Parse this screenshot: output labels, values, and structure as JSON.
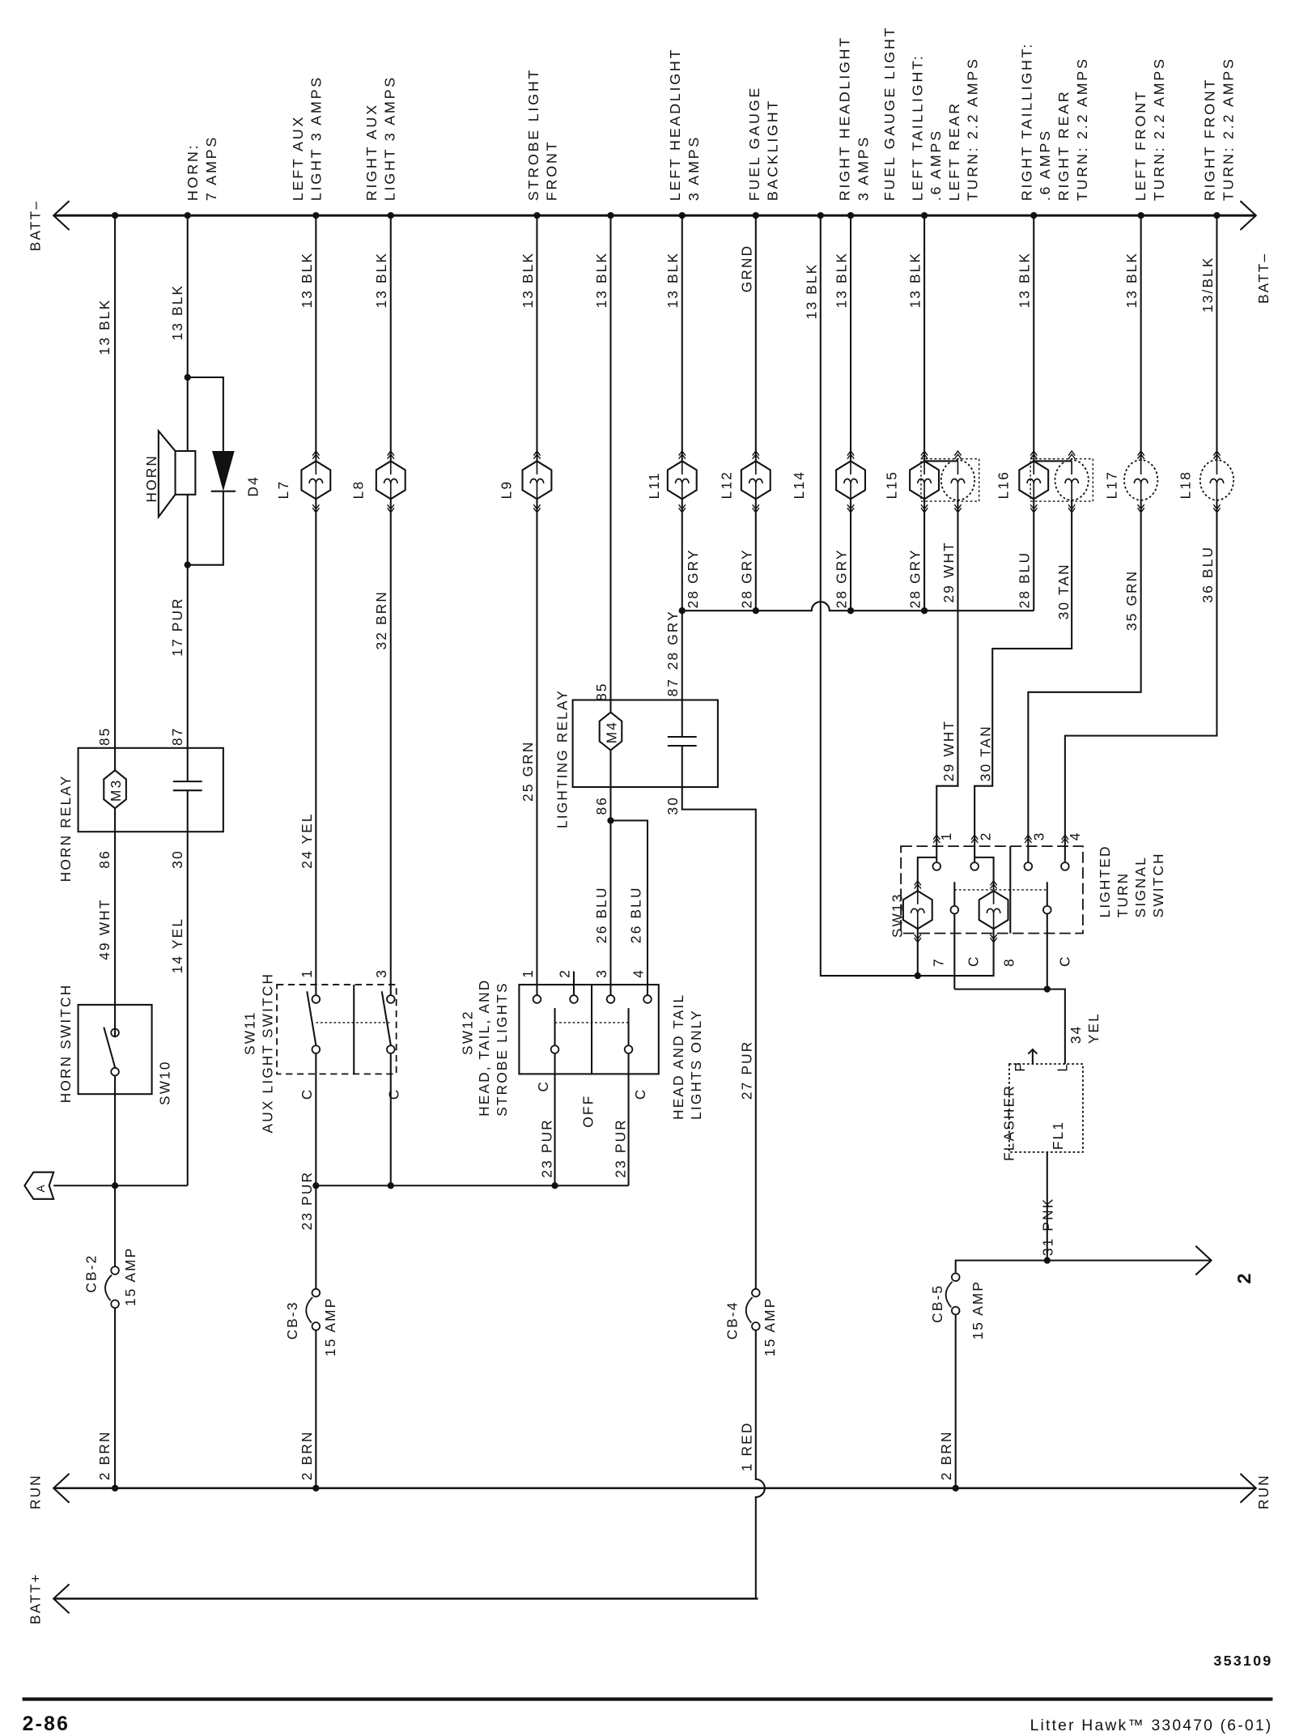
{
  "buses": {
    "batt_neg_left": "BATT–",
    "batt_neg_right": "BATT–",
    "run_left": "RUN",
    "run_right": "RUN",
    "batt_pos": "BATT+"
  },
  "top_labels": {
    "horn": [
      "HORN:",
      "7 AMPS"
    ],
    "left_aux": [
      "LEFT AUX",
      "LIGHT 3 AMPS"
    ],
    "right_aux": [
      "RIGHT AUX",
      "LIGHT 3 AMPS"
    ],
    "strobe": [
      "STROBE LIGHT",
      "FRONT"
    ],
    "left_head": [
      "LEFT HEADLIGHT",
      "3 AMPS"
    ],
    "fuel_backlight": [
      "FUEL GAUGE",
      "BACKLIGHT"
    ],
    "right_head": [
      "RIGHT HEADLIGHT",
      "3 AMPS"
    ],
    "fuel_light": [
      "FUEL GAUGE LIGHT"
    ],
    "left_tail": [
      "LEFT TAILLIGHT:",
      ".6 AMPS",
      "LEFT REAR",
      "TURN: 2.2 AMPS"
    ],
    "right_tail": [
      "RIGHT TAILLIGHT:",
      ".6 AMPS",
      "RIGHT REAR",
      "TURN: 2.2 AMPS"
    ],
    "left_front": [
      "LEFT FRONT",
      "TURN: 2.2 AMPS"
    ],
    "right_front": [
      "RIGHT FRONT",
      "TURN: 2.2 AMPS"
    ]
  },
  "wires": {
    "horn_relay_gnd": "13 BLK",
    "horn_gnd": "13 BLK",
    "l7_gnd": "13 BLK",
    "l8_gnd": "13 BLK",
    "l9_gnd": "13 BLK",
    "relay_gnd": "13 BLK",
    "l11_gnd": "13 BLK",
    "l12_gnd": "GRND",
    "sw13_gnd": "13 BLK",
    "l14_gnd": "13 BLK",
    "l15_gnd": "13 BLK",
    "l16_gnd": "13 BLK",
    "l17_gnd": "13 BLK",
    "l18_gnd": "13/BLK",
    "horn_feed": "17 PUR",
    "l7_feed": "24 YEL",
    "l8_feed": "32 BRN",
    "l9_feed": "25 GRN",
    "l11_feed": "28 GRY",
    "relay_out": "28 GRY",
    "relay_out2": "28 GRY",
    "l12_feed": "28 GRY",
    "l14_feed": "28 GRY",
    "l15_feed": "28 GRY",
    "l15_turn": "29 WHT",
    "l16_feed": "28 BLU",
    "l16_turn": "30 TAN",
    "l17_feed": "35 GRN",
    "l18_feed": "36 BLU",
    "pin1_feed": "29 WHT",
    "pin2_feed": "30 TAN",
    "horn_sw": "49 WHT",
    "horn_relay_30": "14 YEL",
    "relay_coil_a": "26 BLU",
    "relay_coil_b": "26 BLU",
    "pur_a": "23 PUR",
    "pur_b": "23 PUR",
    "pur_c": "23 PUR",
    "relay_30": "27 PUR",
    "brn_a": "2 BRN",
    "brn_b": "2 BRN",
    "brn_c": "2 BRN",
    "red": "1 RED",
    "flasher_l": [
      "34",
      "YEL"
    ],
    "flasher_in": "31 PNK"
  },
  "components": {
    "horn": "HORN",
    "d4": "D4",
    "l7": "L7",
    "l8": "L8",
    "l9": "L9",
    "l11": "L11",
    "l12": "L12",
    "l14": "L14",
    "l15": "L15",
    "l16": "L16",
    "l17": "L17",
    "l18": "L18",
    "horn_relay": "HORN RELAY",
    "m3": "M3",
    "lighting_relay": "LIGHTING RELAY",
    "m4": "M4",
    "horn_switch": "HORN SWITCH",
    "sw10": "SW10",
    "sw11": "SW11",
    "sw11_name": "AUX LIGHT SWITCH",
    "sw12": "SW12",
    "sw12_name": [
      "HEAD, TAIL, AND",
      "STROBE LIGHTS"
    ],
    "sw12_off": "OFF",
    "sw12_alt": [
      "HEAD AND TAIL",
      "LIGHTS ONLY"
    ],
    "sw13": "SW13",
    "sw13_name": [
      "LIGHTED",
      "TURN",
      "SIGNAL",
      "SWITCH"
    ],
    "flasher": "FLASHER",
    "fl1": "FL1",
    "cb2": "CB-2",
    "cb3": "CB-3",
    "cb4": "CB-4",
    "cb5": "CB-5",
    "amp15": "15 AMP",
    "connector_a": "A",
    "offpage_2": "2"
  },
  "pins": {
    "p85": "85",
    "p86": "86",
    "p87": "87",
    "p30": "30",
    "p1": "1",
    "p2": "2",
    "p3": "3",
    "p4": "4",
    "p7": "7",
    "p8": "8",
    "c": "C",
    "p": "P",
    "l": "L"
  },
  "footer": {
    "figure_number": "353109",
    "page": "2-86",
    "manual": "Litter Hawk™ 330470 (6-01)"
  }
}
